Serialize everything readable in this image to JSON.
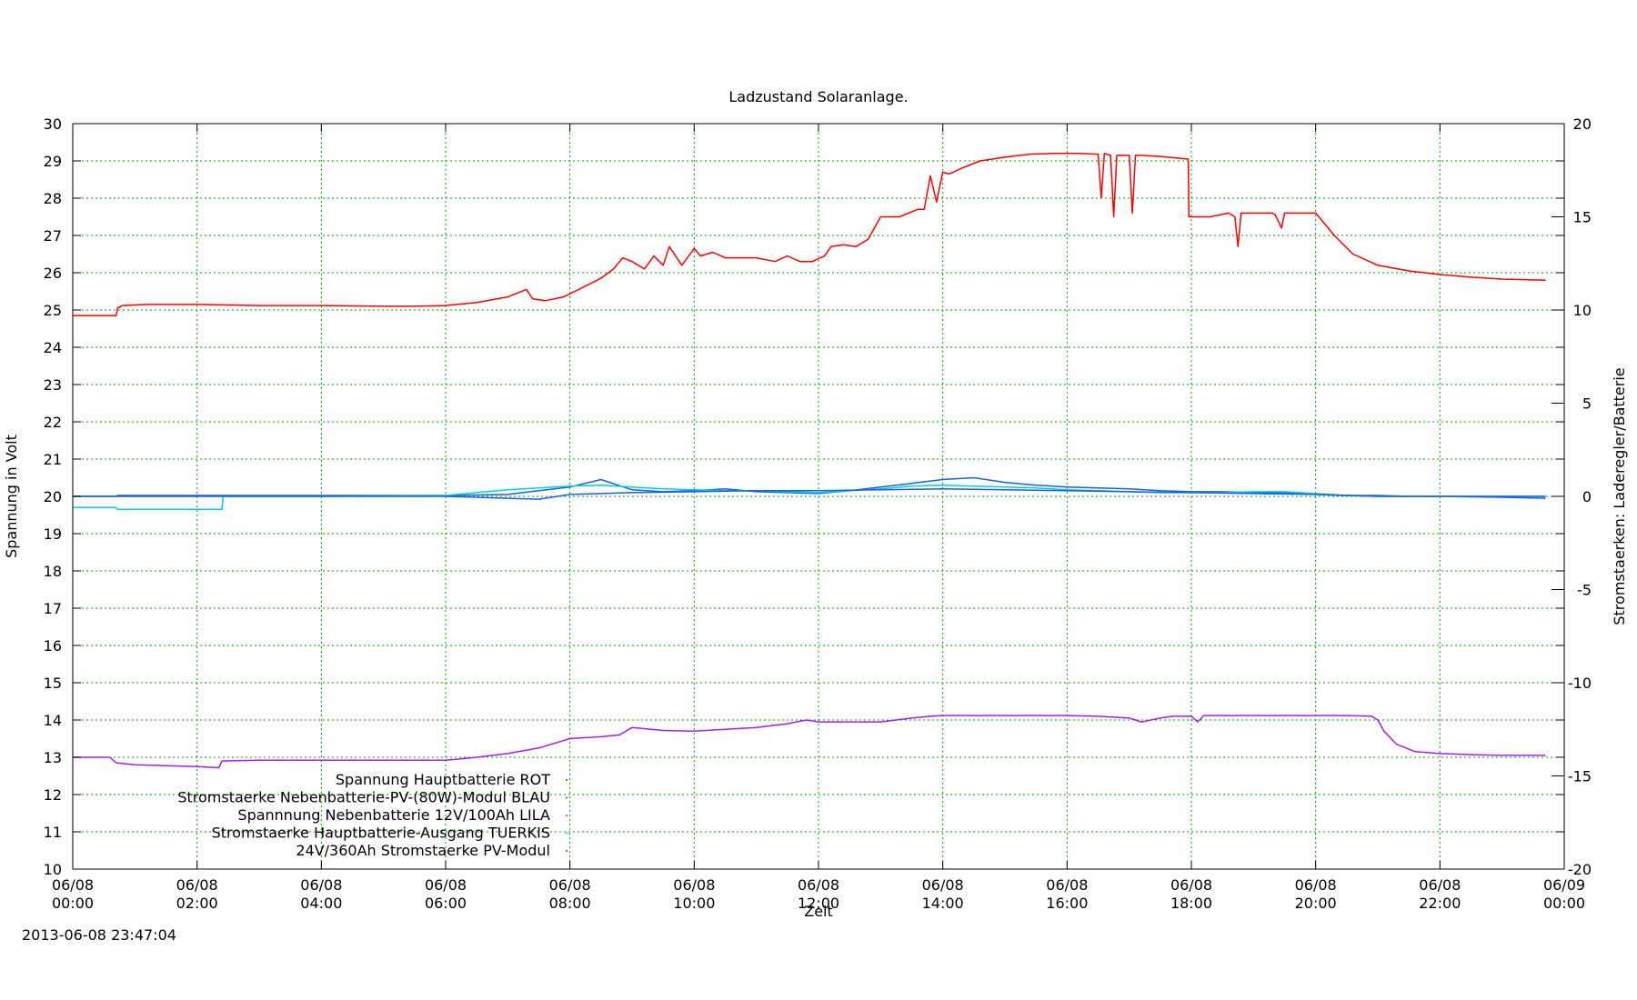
{
  "chart_data": {
    "type": "line",
    "title": "Ladzustand Solaranlage.",
    "xlabel": "Zeit",
    "ylabel": "Spannung in Volt",
    "y2label": "Stromstaerken: Laderegler/Batterie",
    "timestamp": "2013-06-08 23:47:04",
    "xlim": [
      0,
      24
    ],
    "ylim": [
      10,
      30
    ],
    "y2lim": [
      -20,
      20
    ],
    "grid": true,
    "grid_color": "#00a000",
    "legend_position": "lower-left",
    "x_ticks": [
      {
        "pos": 0,
        "date": "06/08",
        "time": "00:00"
      },
      {
        "pos": 2,
        "date": "06/08",
        "time": "02:00"
      },
      {
        "pos": 4,
        "date": "06/08",
        "time": "04:00"
      },
      {
        "pos": 6,
        "date": "06/08",
        "time": "06:00"
      },
      {
        "pos": 8,
        "date": "06/08",
        "time": "08:00"
      },
      {
        "pos": 10,
        "date": "06/08",
        "time": "10:00"
      },
      {
        "pos": 12,
        "date": "06/08",
        "time": "12:00"
      },
      {
        "pos": 14,
        "date": "06/08",
        "time": "14:00"
      },
      {
        "pos": 16,
        "date": "06/08",
        "time": "16:00"
      },
      {
        "pos": 18,
        "date": "06/08",
        "time": "18:00"
      },
      {
        "pos": 20,
        "date": "06/08",
        "time": "20:00"
      },
      {
        "pos": 22,
        "date": "06/08",
        "time": "22:00"
      },
      {
        "pos": 24,
        "date": "06/09",
        "time": "00:00"
      }
    ],
    "y_ticks": [
      10,
      11,
      12,
      13,
      14,
      15,
      16,
      17,
      18,
      19,
      20,
      21,
      22,
      23,
      24,
      25,
      26,
      27,
      28,
      29,
      30
    ],
    "y2_ticks": [
      -20,
      -15,
      -10,
      -5,
      0,
      5,
      10,
      15,
      20
    ],
    "series": [
      {
        "name": "Spannung Hauptbatterie ROT",
        "axis": "y",
        "color": "#ff0000",
        "x": [
          0.0,
          0.7,
          0.72,
          0.8,
          1.2,
          2.0,
          3.0,
          4.0,
          5.0,
          5.5,
          6.0,
          6.5,
          7.0,
          7.3,
          7.4,
          7.6,
          7.9,
          8.2,
          8.5,
          8.7,
          8.85,
          9.0,
          9.2,
          9.35,
          9.5,
          9.6,
          9.8,
          10.0,
          10.1,
          10.3,
          10.5,
          11.0,
          11.3,
          11.5,
          11.7,
          11.9,
          12.1,
          12.2,
          12.4,
          12.6,
          12.8,
          13.0,
          13.3,
          13.6,
          13.7,
          13.8,
          13.9,
          14.0,
          14.1,
          14.3,
          14.6,
          15.0,
          15.4,
          15.8,
          16.2,
          16.5,
          16.55,
          16.6,
          16.7,
          16.75,
          16.8,
          16.9,
          17.0,
          17.05,
          17.1,
          17.2,
          17.5,
          17.95,
          17.96,
          18.3,
          18.6,
          18.7,
          18.75,
          18.8,
          19.3,
          19.35,
          19.45,
          19.5,
          19.8,
          20.0,
          20.3,
          20.6,
          21.0,
          21.5,
          22.0,
          22.5,
          23.0,
          23.7
        ],
        "y": [
          24.85,
          24.85,
          25.05,
          25.12,
          25.15,
          25.15,
          25.12,
          25.12,
          25.1,
          25.1,
          25.12,
          25.2,
          25.35,
          25.55,
          25.3,
          25.25,
          25.35,
          25.6,
          25.85,
          26.1,
          26.4,
          26.3,
          26.1,
          26.45,
          26.2,
          26.7,
          26.2,
          26.65,
          26.45,
          26.55,
          26.4,
          26.4,
          26.3,
          26.45,
          26.3,
          26.3,
          26.45,
          26.7,
          26.75,
          26.7,
          26.9,
          27.5,
          27.5,
          27.7,
          27.7,
          28.6,
          27.9,
          28.7,
          28.65,
          28.8,
          29.0,
          29.1,
          29.18,
          29.2,
          29.2,
          29.18,
          28.0,
          29.2,
          29.15,
          27.5,
          29.15,
          29.15,
          29.15,
          27.6,
          29.15,
          29.15,
          29.12,
          29.05,
          27.5,
          27.5,
          27.6,
          27.5,
          26.7,
          27.6,
          27.6,
          27.55,
          27.2,
          27.6,
          27.6,
          27.6,
          27.0,
          26.5,
          26.2,
          26.05,
          25.95,
          25.88,
          25.83,
          25.8
        ]
      },
      {
        "name": "Stromstaerke Nebenbatterie-PV-(80W)-Modul BLAU",
        "axis": "y2",
        "color": "#1a5fe0",
        "x": [
          0.0,
          0.7,
          0.72,
          2.0,
          4.0,
          6.0,
          7.0,
          7.5,
          8.0,
          8.5,
          9.0,
          9.5,
          10.0,
          10.5,
          11.0,
          11.5,
          12.0,
          12.5,
          13.0,
          13.5,
          14.0,
          14.5,
          15.0,
          15.5,
          16.0,
          16.5,
          17.0,
          17.5,
          18.0,
          18.5,
          19.0,
          19.5,
          20.0,
          20.5,
          21.0,
          21.5,
          22.0,
          23.0,
          23.7
        ],
        "y": [
          0.0,
          0.0,
          0.05,
          0.05,
          0.05,
          0.05,
          0.1,
          0.3,
          0.5,
          0.9,
          0.35,
          0.25,
          0.3,
          0.4,
          0.25,
          0.2,
          0.15,
          0.3,
          0.5,
          0.7,
          0.9,
          1.0,
          0.75,
          0.6,
          0.5,
          0.45,
          0.4,
          0.3,
          0.25,
          0.25,
          0.2,
          0.2,
          0.1,
          0.05,
          0.05,
          0.0,
          0.0,
          -0.05,
          -0.1
        ]
      },
      {
        "name": "Spannnung Nebenbatterie 12V/100Ah LILA",
        "axis": "y",
        "color": "#a020f0",
        "x": [
          0.0,
          0.6,
          0.7,
          1.0,
          2.0,
          2.35,
          2.4,
          3.0,
          4.0,
          5.0,
          6.0,
          6.5,
          7.0,
          7.5,
          8.0,
          8.5,
          8.8,
          9.0,
          9.5,
          10.0,
          10.5,
          11.0,
          11.5,
          11.8,
          12.0,
          12.3,
          12.6,
          13.0,
          13.5,
          13.8,
          14.0,
          14.5,
          15.0,
          15.5,
          16.0,
          16.5,
          17.0,
          17.2,
          17.5,
          17.7,
          18.0,
          18.1,
          18.2,
          18.4,
          19.0,
          19.5,
          20.0,
          20.5,
          20.9,
          21.0,
          21.1,
          21.3,
          21.6,
          22.0,
          22.5,
          23.0,
          23.7
        ],
        "y": [
          13.0,
          13.0,
          12.85,
          12.8,
          12.75,
          12.72,
          12.9,
          12.92,
          12.92,
          12.92,
          12.92,
          13.0,
          13.1,
          13.25,
          13.5,
          13.55,
          13.6,
          13.8,
          13.72,
          13.7,
          13.75,
          13.8,
          13.9,
          14.0,
          13.95,
          13.95,
          13.95,
          13.95,
          14.05,
          14.1,
          14.12,
          14.12,
          14.12,
          14.12,
          14.12,
          14.1,
          14.05,
          13.95,
          14.05,
          14.1,
          14.1,
          13.95,
          14.12,
          14.12,
          14.12,
          14.12,
          14.12,
          14.12,
          14.1,
          14.0,
          13.7,
          13.35,
          13.15,
          13.1,
          13.07,
          13.05,
          13.05
        ]
      },
      {
        "name": "Stromstaerke Hauptbatterie-Ausgang TUERKIS",
        "axis": "y2",
        "color": "#00d0e0",
        "x": [
          0.0,
          0.7,
          0.72,
          2.4,
          2.42,
          4.0,
          6.0,
          6.5,
          7.0,
          7.5,
          8.0,
          8.5,
          9.0,
          9.5,
          10.0,
          10.5,
          11.0,
          11.5,
          12.0,
          12.5,
          13.0,
          13.5,
          14.0,
          14.5,
          15.0,
          15.5,
          16.0,
          16.5,
          17.0,
          17.5,
          18.0,
          18.5,
          19.0,
          19.5,
          20.0,
          20.5,
          21.0,
          22.0,
          23.7
        ],
        "y": [
          -0.6,
          -0.6,
          -0.7,
          -0.7,
          0.0,
          0.0,
          0.05,
          0.2,
          0.35,
          0.45,
          0.55,
          0.6,
          0.5,
          0.4,
          0.35,
          0.3,
          0.3,
          0.25,
          0.2,
          0.3,
          0.4,
          0.55,
          0.6,
          0.55,
          0.5,
          0.45,
          0.35,
          0.3,
          0.25,
          0.2,
          0.2,
          0.2,
          0.25,
          0.25,
          0.15,
          0.05,
          0.0,
          0.0,
          0.0
        ]
      },
      {
        "name": "24V/360Ah Stromstaerke PV-Modul",
        "axis": "y2",
        "color": "#1a5fe0",
        "x": [
          0.0,
          0.7,
          2.0,
          4.0,
          6.0,
          7.0,
          7.5,
          8.0,
          9.0,
          10.0,
          11.0,
          12.0,
          13.0,
          14.0,
          15.0,
          16.0,
          17.0,
          18.0,
          19.0,
          20.0,
          21.0,
          22.0,
          23.7
        ],
        "y": [
          0.0,
          0.0,
          0.0,
          0.0,
          0.0,
          -0.1,
          -0.15,
          0.1,
          0.2,
          0.25,
          0.3,
          0.3,
          0.35,
          0.4,
          0.35,
          0.3,
          0.25,
          0.2,
          0.15,
          0.1,
          0.0,
          0.0,
          0.0
        ]
      }
    ]
  }
}
